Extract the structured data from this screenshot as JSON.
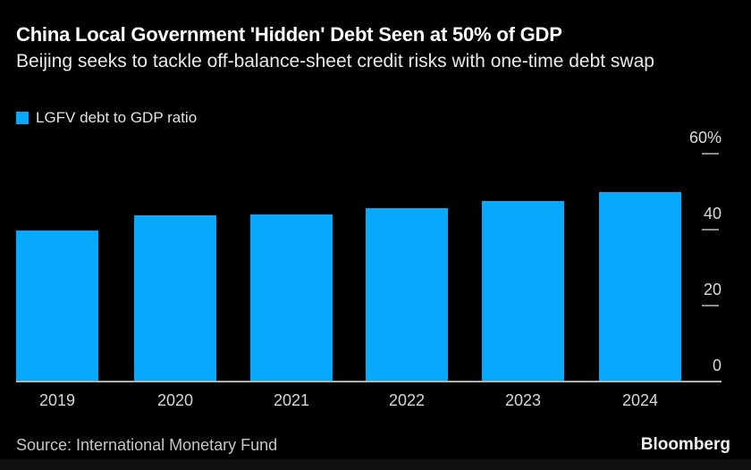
{
  "header": {
    "title": "China Local Government 'Hidden' Debt Seen at 50% of GDP",
    "subtitle": "Beijing seeks to tackle off-balance-sheet credit risks with one-time debt swap"
  },
  "legend": {
    "label": "LGFV debt to GDP ratio",
    "swatch_color": "#06a9fb"
  },
  "chart_data": {
    "type": "bar",
    "title": "China Local Government 'Hidden' Debt Seen at 50% of GDP",
    "series_name": "LGFV debt to GDP ratio",
    "categories": [
      "2019",
      "2020",
      "2021",
      "2022",
      "2023",
      "2024"
    ],
    "values": [
      39.8,
      43.7,
      43.9,
      45.7,
      47.6,
      49.9
    ],
    "unit": "%",
    "xlabel": "",
    "ylabel": "LGFV debt to GDP ratio (%)",
    "ylim": [
      0,
      60
    ],
    "yticks": [
      0,
      20,
      40,
      60
    ],
    "ytick_labels": [
      "0",
      "20",
      "40",
      "60%"
    ],
    "grid": false,
    "legend_position": "top-left",
    "bar_color": "#06a9fb",
    "axis_side": "right"
  },
  "footer": {
    "source": "Source: International Monetary Fund",
    "brand": "Bloomberg"
  }
}
